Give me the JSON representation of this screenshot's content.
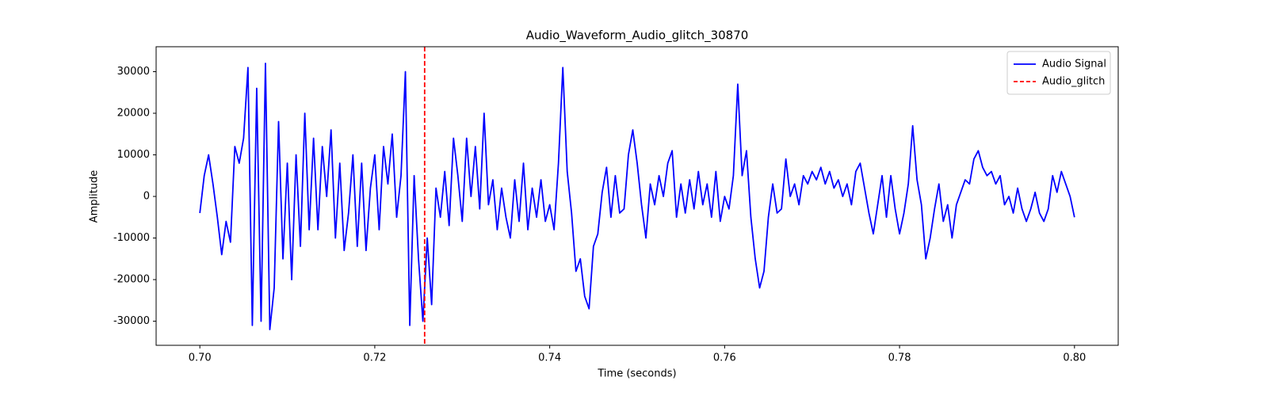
{
  "chart_data": {
    "type": "line",
    "title": "Audio_Waveform_Audio_glitch_30870",
    "xlabel": "Time (seconds)",
    "ylabel": "Amplitude",
    "x": [
      0.7,
      0.7005,
      0.701,
      0.7015,
      0.702,
      0.7025,
      0.703,
      0.7035,
      0.704,
      0.7045,
      0.705,
      0.7055,
      0.706,
      0.7065,
      0.707,
      0.7075,
      0.708,
      0.7085,
      0.709,
      0.7095,
      0.71,
      0.7105,
      0.711,
      0.7115,
      0.712,
      0.7125,
      0.713,
      0.7135,
      0.714,
      0.7145,
      0.715,
      0.7155,
      0.716,
      0.7165,
      0.717,
      0.7175,
      0.718,
      0.7185,
      0.719,
      0.7195,
      0.72,
      0.7205,
      0.721,
      0.7215,
      0.722,
      0.7225,
      0.723,
      0.7235,
      0.724,
      0.7245,
      0.725,
      0.7255,
      0.726,
      0.7265,
      0.727,
      0.7275,
      0.728,
      0.7285,
      0.729,
      0.7295,
      0.73,
      0.7305,
      0.731,
      0.7315,
      0.732,
      0.7325,
      0.733,
      0.7335,
      0.734,
      0.7345,
      0.735,
      0.7355,
      0.736,
      0.7365,
      0.737,
      0.7375,
      0.738,
      0.7385,
      0.739,
      0.7395,
      0.74,
      0.7405,
      0.741,
      0.7415,
      0.742,
      0.7425,
      0.743,
      0.7435,
      0.744,
      0.7445,
      0.745,
      0.7455,
      0.746,
      0.7465,
      0.747,
      0.7475,
      0.748,
      0.7485,
      0.749,
      0.7495,
      0.75,
      0.7505,
      0.751,
      0.7515,
      0.752,
      0.7525,
      0.753,
      0.7535,
      0.754,
      0.7545,
      0.755,
      0.7555,
      0.756,
      0.7565,
      0.757,
      0.7575,
      0.758,
      0.7585,
      0.759,
      0.7595,
      0.76,
      0.7605,
      0.761,
      0.7615,
      0.762,
      0.7625,
      0.763,
      0.7635,
      0.764,
      0.7645,
      0.765,
      0.7655,
      0.766,
      0.7665,
      0.767,
      0.7675,
      0.768,
      0.7685,
      0.769,
      0.7695,
      0.77,
      0.7705,
      0.771,
      0.7715,
      0.772,
      0.7725,
      0.773,
      0.7735,
      0.774,
      0.7745,
      0.775,
      0.7755,
      0.776,
      0.7765,
      0.777,
      0.7775,
      0.778,
      0.7785,
      0.779,
      0.7795,
      0.78,
      0.7805,
      0.781,
      0.7815,
      0.782,
      0.7825,
      0.783,
      0.7835,
      0.784,
      0.7845,
      0.785,
      0.7855,
      0.786,
      0.7865,
      0.787,
      0.7875,
      0.788,
      0.7885,
      0.789,
      0.7895,
      0.79,
      0.7905,
      0.791,
      0.7915,
      0.792,
      0.7925,
      0.793,
      0.7935,
      0.794,
      0.7945,
      0.795,
      0.7955,
      0.796,
      0.7965,
      0.797,
      0.7975,
      0.798,
      0.7985,
      0.799,
      0.7995,
      0.8
    ],
    "series": [
      {
        "name": "Audio Signal",
        "color": "#0000ff",
        "values": [
          -4000,
          5000,
          10000,
          3000,
          -5000,
          -14000,
          -6000,
          -11000,
          12000,
          8000,
          14000,
          31000,
          -31000,
          26000,
          -30000,
          32000,
          -32000,
          -22000,
          18000,
          -15000,
          8000,
          -20000,
          10000,
          -12000,
          20000,
          -8000,
          14000,
          -8000,
          12000,
          0,
          16000,
          -10000,
          8000,
          -13000,
          -4000,
          10000,
          -12000,
          8000,
          -13000,
          2000,
          10000,
          -8000,
          12000,
          3000,
          15000,
          -5000,
          5000,
          30000,
          -31000,
          5000,
          -15000,
          -30000,
          -10000,
          -26000,
          2000,
          -5000,
          6000,
          -7000,
          14000,
          5000,
          -6000,
          14000,
          0,
          12000,
          -3000,
          20000,
          -2000,
          4000,
          -8000,
          2000,
          -5000,
          -10000,
          4000,
          -6000,
          8000,
          -8000,
          2000,
          -5000,
          4000,
          -6000,
          -2000,
          -8000,
          8000,
          31000,
          6000,
          -4000,
          -18000,
          -15000,
          -24000,
          -27000,
          -12000,
          -9000,
          1000,
          7000,
          -5000,
          5000,
          -4000,
          -3000,
          10000,
          16000,
          8000,
          -2000,
          -10000,
          3000,
          -2000,
          5000,
          0,
          8000,
          11000,
          -5000,
          3000,
          -4000,
          4000,
          -3000,
          6000,
          -2000,
          3000,
          -5000,
          6000,
          -6000,
          0,
          -3000,
          5000,
          27000,
          5000,
          11000,
          -5000,
          -15000,
          -22000,
          -18000,
          -5000,
          3000,
          -4000,
          -3000,
          9000,
          0,
          3000,
          -2000,
          5000,
          3000,
          6000,
          4000,
          7000,
          3000,
          6000,
          2000,
          4000,
          0,
          3000,
          -2000,
          6000,
          8000,
          2000,
          -4000,
          -9000,
          -2000,
          5000,
          -5000,
          5000,
          -3000,
          -9000,
          -4000,
          3000,
          17000,
          4000,
          -2000,
          -15000,
          -10000,
          -3000,
          3000,
          -6000,
          -2000,
          -10000,
          -2000,
          1000,
          4000,
          3000,
          9000,
          11000,
          7000,
          5000,
          6000,
          3000,
          5000,
          -2000,
          0,
          -4000,
          2000,
          -3000,
          -6000,
          -3000,
          1000,
          -4000,
          -6000,
          -3000,
          5000,
          1000,
          6000,
          3000,
          0,
          -5000
        ]
      }
    ],
    "markers": [
      {
        "name": "Audio_glitch",
        "x": 0.7257,
        "color": "#ff0000"
      }
    ],
    "xlim": [
      0.695,
      0.805
    ],
    "ylim": [
      -35800,
      36000
    ],
    "xticks": [
      {
        "value": 0.7,
        "label": "0.70"
      },
      {
        "value": 0.72,
        "label": "0.72"
      },
      {
        "value": 0.74,
        "label": "0.74"
      },
      {
        "value": 0.76,
        "label": "0.76"
      },
      {
        "value": 0.78,
        "label": "0.78"
      },
      {
        "value": 0.8,
        "label": "0.80"
      }
    ],
    "yticks": [
      -30000,
      -20000,
      -10000,
      0,
      10000,
      20000,
      30000
    ],
    "legend": "upper right"
  }
}
